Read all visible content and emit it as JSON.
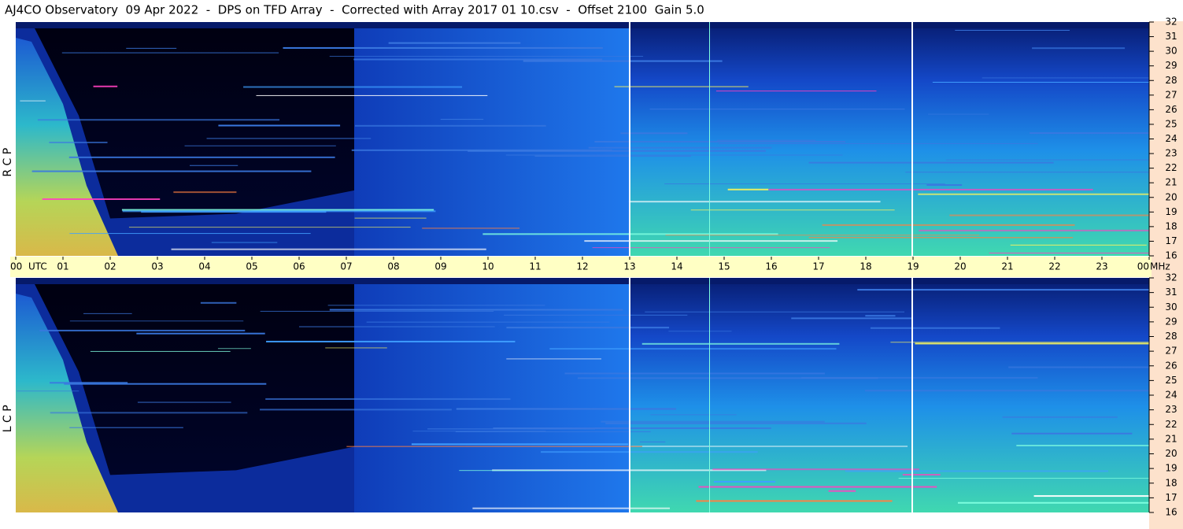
{
  "chart_data": {
    "type": "spectrogram",
    "title": "AJ4CO Observatory  09 Apr 2022  -  DPS on TFD Array  -  Corrected with Array 2017 01 10.csv  -  Offset 2100  Gain 5.0",
    "panels": [
      "R C P",
      "L C P"
    ],
    "x_unit": "UTC",
    "y_unit": "MHz",
    "xlim": [
      0,
      24
    ],
    "xticks": [
      {
        "value": 0,
        "label": "00"
      },
      {
        "value": 1,
        "label": "01"
      },
      {
        "value": 2,
        "label": "02"
      },
      {
        "value": 3,
        "label": "03"
      },
      {
        "value": 4,
        "label": "04"
      },
      {
        "value": 5,
        "label": "05"
      },
      {
        "value": 6,
        "label": "06"
      },
      {
        "value": 7,
        "label": "07"
      },
      {
        "value": 8,
        "label": "08"
      },
      {
        "value": 9,
        "label": "09"
      },
      10,
      11,
      12,
      13,
      14,
      15,
      16,
      17,
      18,
      19,
      20,
      21,
      22,
      23,
      {
        "value": 24,
        "label": "00"
      }
    ],
    "ylim": [
      16,
      32
    ],
    "yticks": [
      16,
      17,
      18,
      19,
      20,
      21,
      22,
      23,
      24,
      25,
      26,
      27,
      28,
      29,
      30,
      31,
      32
    ]
  }
}
